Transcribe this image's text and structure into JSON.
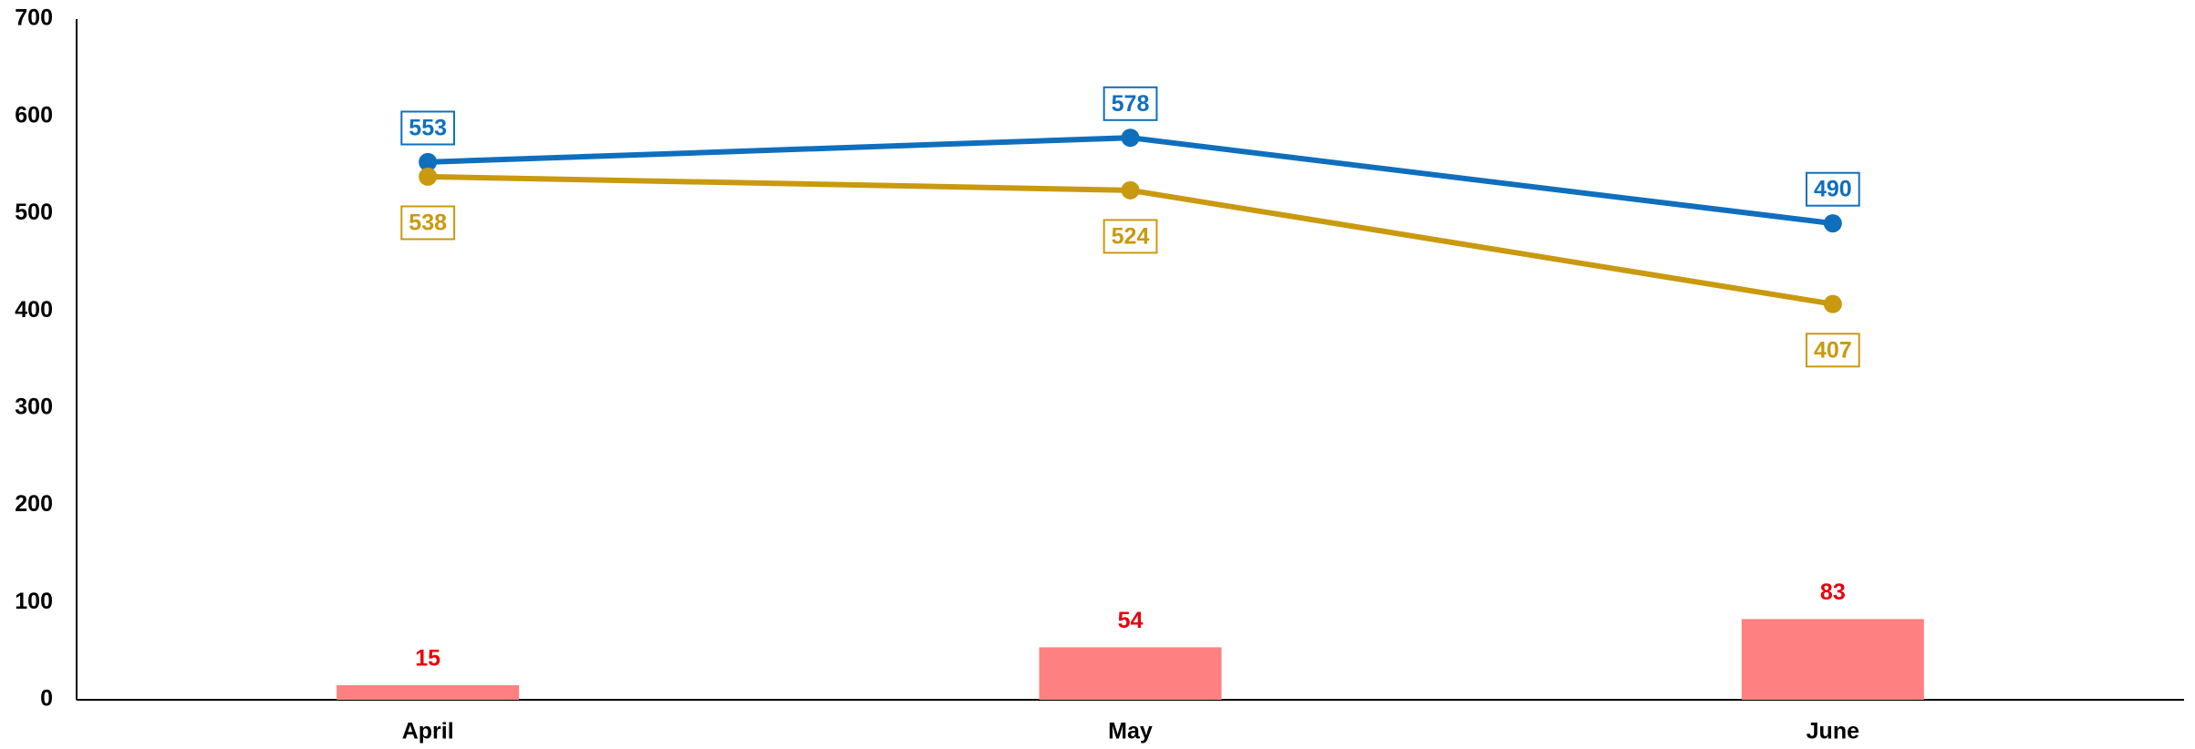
{
  "chart_data": {
    "type": "line_bar",
    "categories": [
      "April",
      "May",
      "June"
    ],
    "series": [
      {
        "type": "line",
        "color": "#0f6fbd",
        "values": [
          553,
          578,
          490
        ],
        "label_position": "above"
      },
      {
        "type": "line",
        "color": "#c9990f",
        "values": [
          538,
          524,
          407
        ],
        "label_position": "below"
      },
      {
        "type": "bar",
        "color": "#ff8080",
        "label_color": "#e8000b",
        "values": [
          15,
          54,
          83
        ]
      }
    ],
    "ylim": [
      0,
      700
    ],
    "yticks": [
      0,
      100,
      200,
      300,
      400,
      500,
      600,
      700
    ],
    "grid": false
  }
}
